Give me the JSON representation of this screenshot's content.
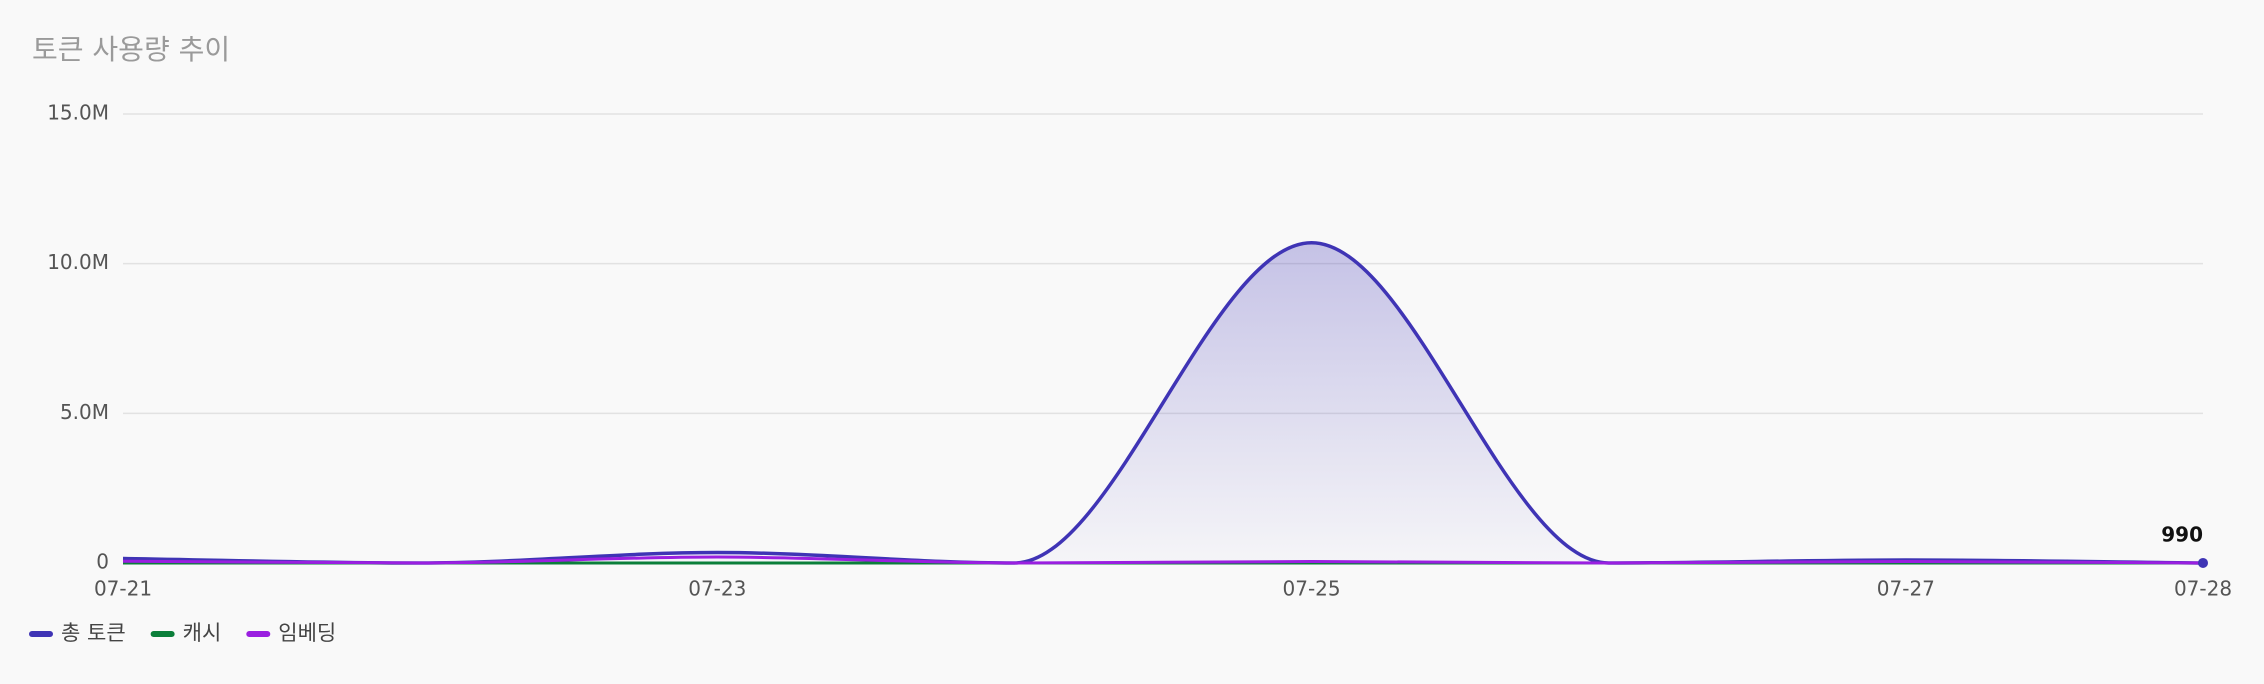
{
  "chart_data": {
    "type": "area-line",
    "title": "토큰 사용량 추이",
    "categories": [
      "07-21",
      null,
      "07-23",
      null,
      "07-25",
      null,
      "07-27",
      "07-28"
    ],
    "series": [
      {
        "name": "총 토큰",
        "color": "#3f34b5",
        "values": [
          150000,
          0,
          350000,
          0,
          10700000,
          0,
          100000,
          990
        ]
      },
      {
        "name": "캐시",
        "color": "#0b7f3a",
        "values": [
          0,
          0,
          0,
          0,
          0,
          0,
          0,
          0
        ]
      },
      {
        "name": "임베딩",
        "color": "#9a1fe0",
        "values": [
          60000,
          0,
          200000,
          0,
          50000,
          0,
          50000,
          0
        ]
      }
    ],
    "ylim": [
      0,
      15000000
    ],
    "yticks": [
      0,
      {
        "value": 5000000,
        "label": "5.0M"
      },
      {
        "value": 10000000,
        "label": "10.0M"
      },
      {
        "value": 15000000,
        "label": "15.0M"
      }
    ],
    "grid": true,
    "legend": "bottom-left"
  }
}
